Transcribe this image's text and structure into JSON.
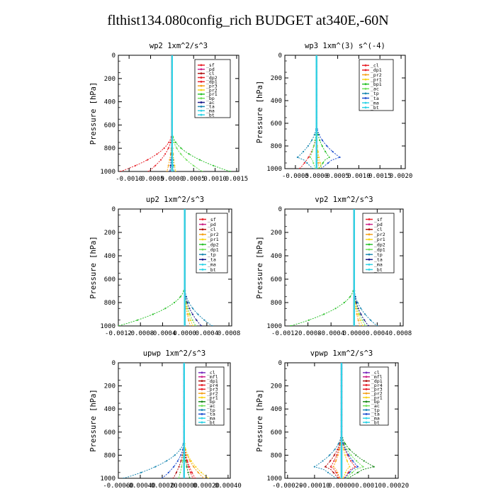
{
  "page_title": "flthist134.080config_rich  BUDGET at340E,-60N",
  "colors": {
    "red": "#e8222a",
    "magenta": "#cc2288",
    "dark_red": "#b01010",
    "orange": "#f5a21b",
    "yellow": "#f7d31b",
    "green": "#2ec22e",
    "lime": "#70e05a",
    "blue": "#1f4fd0",
    "navy": "#1a1a8c",
    "teal": "#1e8ab4",
    "cyan": "#2fd3e6",
    "purple": "#7b2fbf",
    "dark_green": "#1a8a1a"
  },
  "chart_data": [
    {
      "type": "line",
      "title": "wp2   1xm^2/s^3",
      "ylabel": "Pressure  [hPa]",
      "ylim": [
        1000,
        0
      ],
      "xlim": [
        -0.00125,
        0.00155
      ],
      "xticks": [
        -0.001,
        -0.0005,
        0.0,
        0.0005,
        0.001,
        0.0015
      ],
      "xtick_labels": [
        "-0.0010",
        "-0.0005",
        "0.0000",
        "0.0005",
        "0.0010",
        "0.0015"
      ],
      "yticks": [
        0,
        200,
        400,
        600,
        800,
        1000
      ],
      "ytick_labels": [
        "0",
        "200",
        "400",
        "600",
        "800",
        "1000"
      ],
      "legend_position": "top-right",
      "series": [
        {
          "name": "_sf",
          "color": "#e8222a",
          "amp": 0,
          "pattern": "zero"
        },
        {
          "name": "_pd",
          "color": "#cc2288",
          "amp": 0,
          "pattern": "zero"
        },
        {
          "name": "_cl",
          "color": "#b01010",
          "amp": 0,
          "pattern": "zero"
        },
        {
          "name": "_dp2",
          "color": "#e8222a",
          "amp": -0.0012,
          "pattern": "surface"
        },
        {
          "name": "_dp1",
          "color": "#e8222a",
          "amp": -0.00055,
          "pattern": "surface"
        },
        {
          "name": "_pr3",
          "color": "#f5a21b",
          "amp": -0.00012,
          "pattern": "surface"
        },
        {
          "name": "_pr2",
          "color": "#f7d31b",
          "amp": 8e-05,
          "pattern": "surface"
        },
        {
          "name": "_pr1",
          "color": "#2ec22e",
          "amp": 0.00135,
          "pattern": "surface"
        },
        {
          "name": "_bp",
          "color": "#70e05a",
          "amp": 0.0007,
          "pattern": "surface"
        },
        {
          "name": "_ac",
          "color": "#1a1a8c",
          "amp": -5e-05,
          "pattern": "surface"
        },
        {
          "name": "_ta",
          "color": "#1e8ab4",
          "amp": 4e-05,
          "pattern": "surface"
        },
        {
          "name": "_ma",
          "color": "#2fd3e6",
          "amp": 0,
          "pattern": "zero"
        },
        {
          "name": "_bt",
          "color": "#2fd3e6",
          "amp": 0,
          "pattern": "zero"
        }
      ]
    },
    {
      "type": "line",
      "title": "wp3   1xm^(3) s^(-4)",
      "ylabel": "Pressure  [hPa]",
      "ylim": [
        1000,
        0
      ],
      "xlim": [
        -0.00075,
        0.0021
      ],
      "xticks": [
        -0.0005,
        0.0,
        0.0005,
        0.001,
        0.0015,
        0.002
      ],
      "xtick_labels": [
        "-0.0005",
        "0.0000",
        "0.0005",
        "0.0010",
        "0.0015",
        "0.0020"
      ],
      "yticks": [
        0,
        200,
        400,
        600,
        800,
        1000
      ],
      "ytick_labels": [
        "0",
        "200",
        "400",
        "600",
        "800",
        "1000"
      ],
      "legend_position": "top-right",
      "series": [
        {
          "name": "_cl",
          "color": "#e8222a",
          "amp": 0,
          "pattern": "zero"
        },
        {
          "name": "_dp1",
          "color": "#e8222a",
          "amp": -0.0004,
          "pattern": "surface"
        },
        {
          "name": "_pr2",
          "color": "#f5a21b",
          "amp": 6e-05,
          "pattern": "surface"
        },
        {
          "name": "_pr1",
          "color": "#f7d31b",
          "amp": 0.00012,
          "pattern": "surface"
        },
        {
          "name": "_bp1",
          "color": "#2ec22e",
          "amp": 0.0003,
          "pattern": "nose"
        },
        {
          "name": "_ac",
          "color": "#70e05a",
          "amp": -0.00015,
          "pattern": "nose"
        },
        {
          "name": "_tp",
          "color": "#1e8ab4",
          "amp": -0.00045,
          "pattern": "nose"
        },
        {
          "name": "_ta",
          "color": "#1f4fd0",
          "amp": 0.00055,
          "pattern": "nose"
        },
        {
          "name": "_ma",
          "color": "#2fd3e6",
          "amp": 0,
          "pattern": "zero"
        },
        {
          "name": "_bt",
          "color": "#2fd3e6",
          "amp": 0,
          "pattern": "zero"
        }
      ]
    },
    {
      "type": "line",
      "title": "up2   1xm^2/s^3",
      "ylabel": "Pressure  [hPa]",
      "ylim": [
        1000,
        0
      ],
      "xlim": [
        -0.0012,
        0.00085
      ],
      "xticks": [
        -0.0012,
        -0.0008,
        -0.0004,
        0.0,
        0.0004,
        0.0008
      ],
      "xtick_labels": [
        "-0.0012",
        "-0.0008",
        "-0.0004",
        "0.0000",
        "0.0004",
        "0.0008"
      ],
      "yticks": [
        0,
        200,
        400,
        600,
        800,
        1000
      ],
      "ytick_labels": [
        "0",
        "200",
        "400",
        "600",
        "800",
        "1000"
      ],
      "legend_position": "top-right",
      "series": [
        {
          "name": "_sf",
          "color": "#e8222a",
          "amp": 0,
          "pattern": "zero"
        },
        {
          "name": "_pd",
          "color": "#cc2288",
          "amp": 0,
          "pattern": "zero"
        },
        {
          "name": "_cl",
          "color": "#b01010",
          "amp": 0,
          "pattern": "zero"
        },
        {
          "name": "_pr2",
          "color": "#f5a21b",
          "amp": 0.0001,
          "pattern": "surface"
        },
        {
          "name": "_pr1",
          "color": "#f7d31b",
          "amp": 0.00015,
          "pattern": "surface"
        },
        {
          "name": "_dp2",
          "color": "#2ec22e",
          "amp": -0.0012,
          "pattern": "surface"
        },
        {
          "name": "_dp1",
          "color": "#70e05a",
          "amp": 0.0002,
          "pattern": "surface"
        },
        {
          "name": "_tp",
          "color": "#1e8ab4",
          "amp": 0.0005,
          "pattern": "surface"
        },
        {
          "name": "_ta",
          "color": "#1a1a8c",
          "amp": 0.0003,
          "pattern": "surface"
        },
        {
          "name": "_ma",
          "color": "#2fd3e6",
          "amp": 0,
          "pattern": "zero"
        },
        {
          "name": "_bt",
          "color": "#2fd3e6",
          "amp": 0,
          "pattern": "zero"
        }
      ]
    },
    {
      "type": "line",
      "title": "vp2   1xm^2/s^3",
      "ylabel": "Pressure  [hPa]",
      "ylim": [
        1000,
        0
      ],
      "xlim": [
        -0.0012,
        0.00085
      ],
      "xticks": [
        -0.0012,
        -0.0008,
        -0.0004,
        0.0,
        0.0004,
        0.0008
      ],
      "xtick_labels": [
        "-0.0012",
        "-0.0008",
        "-0.0004",
        "0.0000",
        "0.0004",
        "0.0008"
      ],
      "yticks": [
        0,
        200,
        400,
        600,
        800,
        1000
      ],
      "ytick_labels": [
        "0",
        "200",
        "400",
        "600",
        "800",
        "1000"
      ],
      "legend_position": "top-right",
      "series": [
        {
          "name": "_sf",
          "color": "#e8222a",
          "amp": 0,
          "pattern": "zero"
        },
        {
          "name": "_pd",
          "color": "#cc2288",
          "amp": 0,
          "pattern": "zero"
        },
        {
          "name": "_cl",
          "color": "#b01010",
          "amp": 0,
          "pattern": "zero"
        },
        {
          "name": "_pr2",
          "color": "#f5a21b",
          "amp": 0.0001,
          "pattern": "surface"
        },
        {
          "name": "_pr1",
          "color": "#f7d31b",
          "amp": 0.00015,
          "pattern": "surface"
        },
        {
          "name": "_dp2",
          "color": "#2ec22e",
          "amp": -0.0011,
          "pattern": "surface"
        },
        {
          "name": "_dp1",
          "color": "#70e05a",
          "amp": 0.0002,
          "pattern": "surface"
        },
        {
          "name": "_tp",
          "color": "#1e8ab4",
          "amp": 0.0004,
          "pattern": "surface"
        },
        {
          "name": "_ta",
          "color": "#1a1a8c",
          "amp": 0.00025,
          "pattern": "surface"
        },
        {
          "name": "_ma",
          "color": "#2fd3e6",
          "amp": 0,
          "pattern": "zero"
        },
        {
          "name": "_bt",
          "color": "#2fd3e6",
          "amp": 0,
          "pattern": "zero"
        }
      ]
    },
    {
      "type": "line",
      "title": "upwp   1xm^2/s^3",
      "ylabel": "Pressure  [hPa]",
      "ylim": [
        1000,
        0
      ],
      "xlim": [
        -0.0006,
        0.00042
      ],
      "xticks": [
        -0.0006,
        -0.0004,
        -0.0002,
        0.0,
        0.0002,
        0.0004
      ],
      "xtick_labels": [
        "-0.00060",
        "-0.00040",
        "-0.00020",
        "0.00000",
        "0.00020",
        "0.00040"
      ],
      "yticks": [
        0,
        200,
        400,
        600,
        800,
        1000
      ],
      "ytick_labels": [
        "0",
        "200",
        "400",
        "600",
        "800",
        "1000"
      ],
      "legend_position": "top-right",
      "series": [
        {
          "name": "_cl",
          "color": "#7b2fbf",
          "amp": 0,
          "pattern": "zero"
        },
        {
          "name": "_mfl",
          "color": "#cc2288",
          "amp": 0,
          "pattern": "zero"
        },
        {
          "name": "_dp1",
          "color": "#b01010",
          "amp": -0.0001,
          "pattern": "surface"
        },
        {
          "name": "_pr4",
          "color": "#e8222a",
          "amp": 8e-05,
          "pattern": "surface"
        },
        {
          "name": "_pr3",
          "color": "#e8222a",
          "amp": 0.0001,
          "pattern": "surface"
        },
        {
          "name": "_pr2",
          "color": "#f5a21b",
          "amp": 0.00018,
          "pattern": "surface"
        },
        {
          "name": "_pr1",
          "color": "#f7d31b",
          "amp": 0.00022,
          "pattern": "surface"
        },
        {
          "name": "_bp",
          "color": "#1a8a1a",
          "amp": 5e-05,
          "pattern": "surface"
        },
        {
          "name": "_ac",
          "color": "#70e05a",
          "amp": -5e-05,
          "pattern": "surface"
        },
        {
          "name": "_tp",
          "color": "#1e8ab4",
          "amp": -0.00055,
          "pattern": "surface"
        },
        {
          "name": "_ta",
          "color": "#1f4fd0",
          "amp": -0.0002,
          "pattern": "surface"
        },
        {
          "name": "_ma",
          "color": "#2fd3e6",
          "amp": 0,
          "pattern": "zero"
        },
        {
          "name": "_bt",
          "color": "#2fd3e6",
          "amp": 0,
          "pattern": "zero"
        }
      ]
    },
    {
      "type": "line",
      "title": "vpwp   1xm^2/s^3",
      "ylabel": "Pressure  [hPa]",
      "ylim": [
        1000,
        0
      ],
      "xlim": [
        -0.00021,
        0.00021
      ],
      "xticks": [
        -0.0002,
        -0.0001,
        0.0,
        0.0001,
        0.0002
      ],
      "xtick_labels": [
        "-0.00020",
        "-0.00010",
        "0.00000",
        "0.00010",
        "0.00020"
      ],
      "yticks": [
        0,
        200,
        400,
        600,
        800,
        1000
      ],
      "ytick_labels": [
        "0",
        "200",
        "400",
        "600",
        "800",
        "1000"
      ],
      "legend_position": "top-right",
      "series": [
        {
          "name": "_cl",
          "color": "#7b2fbf",
          "amp": 0,
          "pattern": "zero"
        },
        {
          "name": "_mfl",
          "color": "#cc2288",
          "amp": 0,
          "pattern": "zero"
        },
        {
          "name": "_dp1",
          "color": "#b01010",
          "amp": -6e-05,
          "pattern": "nose"
        },
        {
          "name": "_pr4",
          "color": "#e8222a",
          "amp": -4e-05,
          "pattern": "nose"
        },
        {
          "name": "_pr3",
          "color": "#e8222a",
          "amp": 5e-05,
          "pattern": "nose"
        },
        {
          "name": "_pr2",
          "color": "#f5a21b",
          "amp": -3e-05,
          "pattern": "nose"
        },
        {
          "name": "_pr1",
          "color": "#f7d31b",
          "amp": 3e-05,
          "pattern": "nose"
        },
        {
          "name": "_bp",
          "color": "#1a8a1a",
          "amp": 0.00012,
          "pattern": "nose"
        },
        {
          "name": "_ac",
          "color": "#70e05a",
          "amp": 8e-05,
          "pattern": "nose"
        },
        {
          "name": "_tp",
          "color": "#1e8ab4",
          "amp": -0.0001,
          "pattern": "nose"
        },
        {
          "name": "_ta",
          "color": "#1f4fd0",
          "amp": 6e-05,
          "pattern": "nose"
        },
        {
          "name": "_ma",
          "color": "#2fd3e6",
          "amp": 0,
          "pattern": "zero"
        },
        {
          "name": "_bt",
          "color": "#2fd3e6",
          "amp": 0,
          "pattern": "zero"
        }
      ]
    }
  ]
}
